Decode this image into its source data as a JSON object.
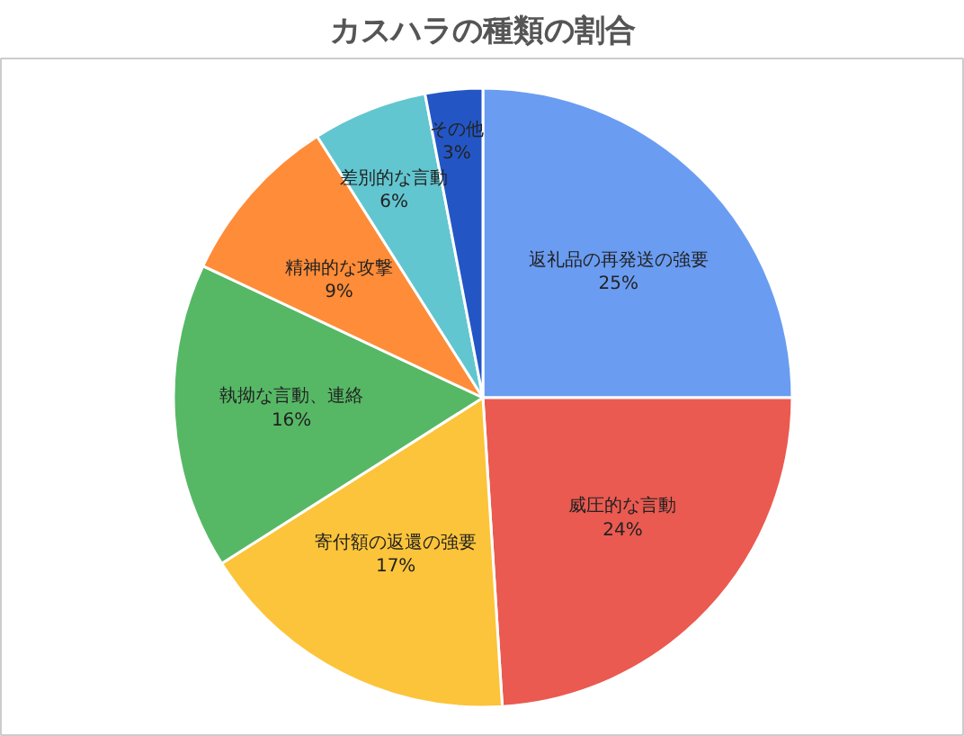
{
  "chart_data": {
    "type": "pie",
    "title": "カスハラの種類の割合",
    "categories": [
      "返礼品の再発送の強要",
      "威圧的な言動",
      "寄付額の返還の強要",
      "執拗な言動、連絡",
      "精神的な攻撃",
      "差別的な言動",
      "その他"
    ],
    "values": [
      25,
      24,
      17,
      16,
      9,
      6,
      3
    ],
    "colors": [
      "#6a9cf2",
      "#ea5a50",
      "#fcc43a",
      "#56b865",
      "#ff8c38",
      "#62c6d0",
      "#2356c4"
    ],
    "value_labels": [
      "25%",
      "24%",
      "17%",
      "16%",
      "9%",
      "6%",
      "3%"
    ]
  }
}
